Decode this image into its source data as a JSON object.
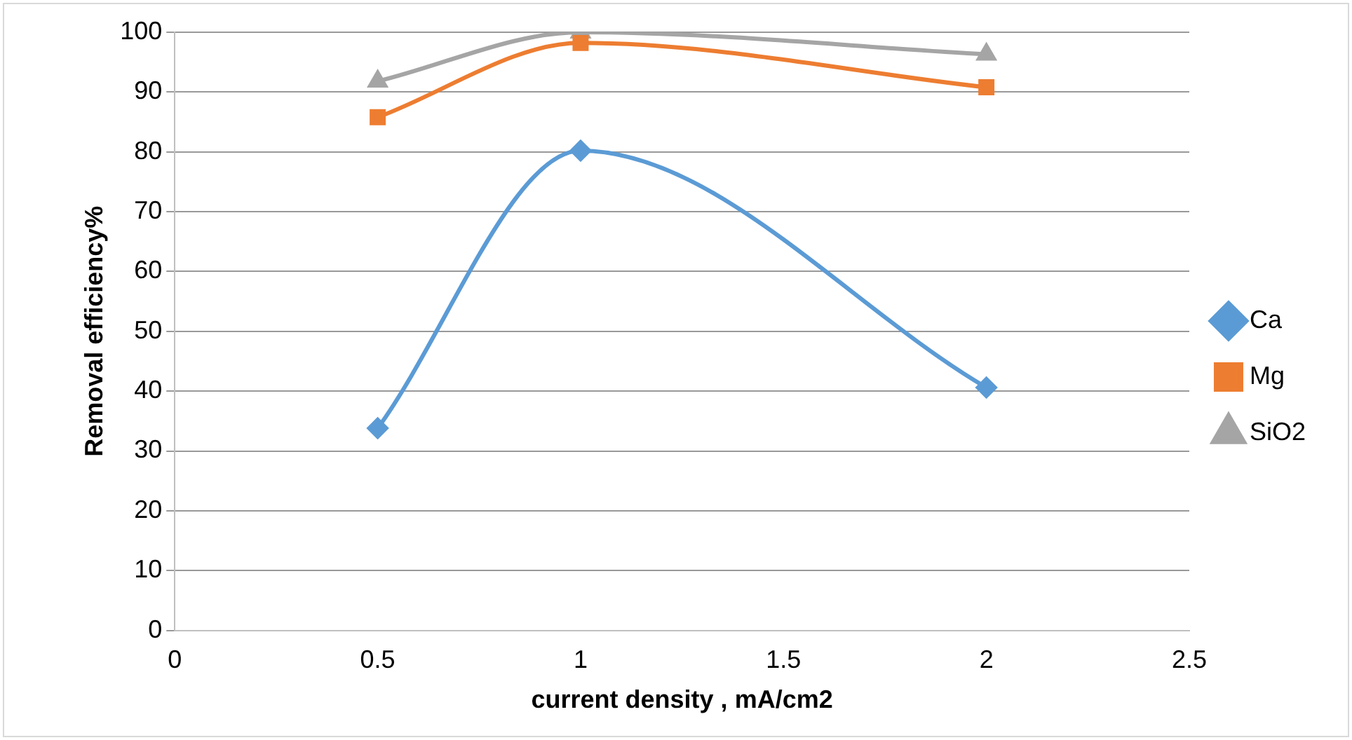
{
  "chart_data": {
    "type": "line",
    "xlabel": "current density , mA/cm2",
    "ylabel": "Removal efficiency%",
    "x": [
      0.5,
      1,
      2
    ],
    "series": [
      {
        "name": "Ca",
        "color": "#5b9bd5",
        "marker": "diamond",
        "values": [
          33.8,
          80.2,
          40.6
        ]
      },
      {
        "name": "Mg",
        "color": "#ed7d31",
        "marker": "square",
        "values": [
          85.8,
          98.2,
          90.8
        ]
      },
      {
        "name": "SiO2",
        "color": "#a5a5a5",
        "marker": "triangle",
        "values": [
          91.8,
          100,
          96.3
        ]
      }
    ],
    "xlim": [
      0,
      2.5
    ],
    "xticks": [
      0,
      0.5,
      1,
      1.5,
      2,
      2.5
    ],
    "ylim": [
      0,
      100
    ],
    "yticks": [
      0,
      10,
      20,
      30,
      40,
      50,
      60,
      70,
      80,
      90,
      100
    ],
    "grid": "y",
    "legend": "right"
  }
}
